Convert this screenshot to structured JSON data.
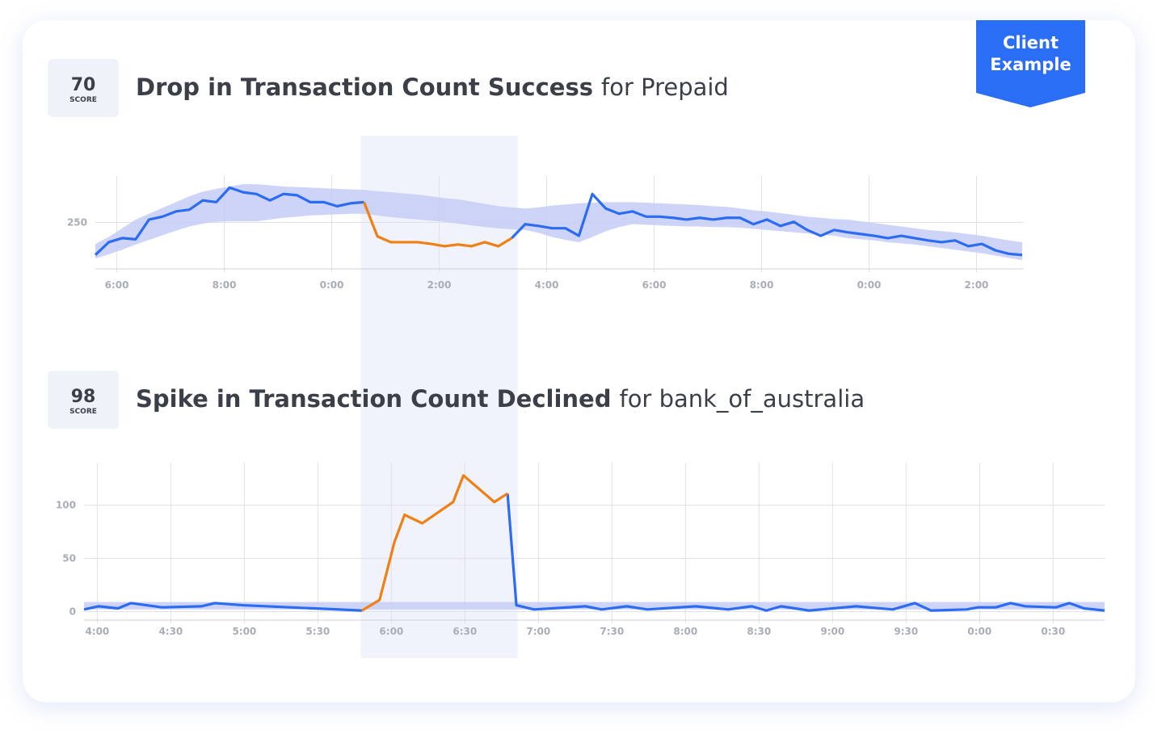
{
  "badge": "Client Example",
  "chart_data": [
    {
      "type": "line",
      "score": 70,
      "score_label": "SCORE",
      "title": "Drop in Transaction Count Success",
      "subtitle": "for Prepaid",
      "x": [
        -0.4,
        -0.15,
        0.1,
        0.35,
        0.6,
        0.85,
        1.1,
        1.35,
        1.6,
        1.85,
        2.1,
        2.35,
        2.6,
        2.85,
        3.1,
        3.35,
        3.6,
        3.85,
        4.1,
        4.35,
        4.6,
        4.85,
        5.1,
        5.35,
        5.6,
        5.85,
        6.1,
        6.35,
        6.6,
        6.85,
        7.1,
        7.35,
        7.6,
        7.85,
        8.1,
        8.35,
        8.6,
        8.85,
        9.1,
        9.35,
        9.6,
        9.85,
        10.1,
        10.35,
        10.6,
        10.85,
        11.1,
        11.35,
        11.6,
        11.85,
        12.1,
        12.35,
        12.6,
        12.85,
        13.1,
        13.35,
        13.6,
        13.85,
        14.1,
        14.35,
        14.6,
        14.85,
        15.1,
        15.35,
        15.6,
        15.85,
        16.1,
        16.35,
        16.6,
        16.85
      ],
      "series": [
        {
          "color": "#2b6cf2",
          "values": [
            194,
            216,
            223,
            221,
            255,
            260,
            269,
            272,
            288,
            285,
            310,
            302,
            299,
            288,
            299,
            297,
            285,
            285,
            278,
            283,
            285,
            null,
            null,
            null,
            null,
            null,
            null,
            null,
            null,
            null,
            null,
            223,
            247,
            244,
            240,
            240,
            227,
            299,
            274,
            265,
            269,
            260,
            260,
            258,
            255,
            258,
            255,
            258,
            258,
            247,
            255,
            244,
            251,
            237,
            227,
            237,
            233,
            230,
            227,
            223,
            227,
            223,
            219,
            216,
            219,
            209,
            213,
            202,
            196,
            194
          ]
        },
        {
          "color": "#f07f14",
          "values": [
            null,
            null,
            null,
            null,
            null,
            null,
            null,
            null,
            null,
            null,
            null,
            null,
            null,
            null,
            null,
            null,
            null,
            null,
            null,
            null,
            285,
            226,
            216,
            216,
            216,
            213,
            209,
            212,
            209,
            216,
            209,
            223,
            null,
            null,
            null,
            null,
            null,
            null,
            null,
            null,
            null,
            null,
            null,
            null,
            null,
            null,
            null,
            null,
            null,
            null,
            null,
            null,
            null,
            null,
            null,
            null,
            null,
            null,
            null,
            null,
            null,
            null,
            null,
            null,
            null,
            null,
            null,
            null,
            null,
            null
          ]
        }
      ],
      "band": {
        "color": "#c6ccf6",
        "upper": [
          213,
          225,
          240,
          255,
          265,
          275,
          285,
          295,
          303,
          308,
          312,
          316,
          316,
          314,
          312,
          311,
          310,
          309,
          308,
          307,
          306,
          304,
          302,
          300,
          298,
          295,
          292,
          290,
          286,
          282,
          278,
          276,
          274,
          276,
          279,
          281,
          283,
          284,
          285,
          285,
          285,
          284,
          283,
          282,
          281,
          280,
          278,
          277,
          274,
          271,
          269,
          266,
          263,
          260,
          258,
          256,
          255,
          252,
          249,
          246,
          243,
          240,
          237,
          235,
          233,
          230,
          227,
          223,
          219,
          216
        ],
        "lower": [
          188,
          195,
          203,
          212,
          220,
          228,
          236,
          243,
          248,
          251,
          252,
          252,
          252,
          255,
          258,
          260,
          262,
          263,
          264,
          265,
          265,
          262,
          259,
          257,
          255,
          253,
          251,
          248,
          245,
          242,
          240,
          238,
          237,
          232,
          225,
          220,
          216,
          225,
          235,
          242,
          247,
          246,
          245,
          244,
          243,
          243,
          242,
          242,
          241,
          239,
          237,
          235,
          233,
          231,
          229,
          227,
          223,
          221,
          219,
          216,
          214,
          212,
          209,
          206,
          203,
          200,
          197,
          193,
          189,
          185
        ]
      },
      "highlight": [
        4.54,
        7.46
      ],
      "xlim": [
        -0.4,
        16.88
      ],
      "ylim": [
        170,
        330
      ],
      "xticks": [
        {
          "value": 0,
          "label": "6:00"
        },
        {
          "value": 2,
          "label": "8:00"
        },
        {
          "value": 4,
          "label": "0:00"
        },
        {
          "value": 6,
          "label": "2:00"
        },
        {
          "value": 8,
          "label": "4:00"
        },
        {
          "value": 10,
          "label": "6:00"
        },
        {
          "value": 12,
          "label": "8:00"
        },
        {
          "value": 14,
          "label": "0:00"
        },
        {
          "value": 16,
          "label": "2:00"
        }
      ],
      "yticks": [
        250
      ],
      "grid": true
    },
    {
      "type": "line",
      "score": 98,
      "score_label": "SCORE",
      "title": "Spike in Transaction Count Declined",
      "subtitle": "for bank_of_australia",
      "x": [
        -0.09,
        0.01,
        0.14,
        0.23,
        0.44,
        0.71,
        0.8,
        0.99,
        1.8,
        1.92,
        2.02,
        2.09,
        2.21,
        2.42,
        2.49,
        2.7,
        2.79,
        2.85,
        2.97,
        3.32,
        3.43,
        3.6,
        3.74,
        4.07,
        4.29,
        4.45,
        4.55,
        4.65,
        4.84,
        5.16,
        5.41,
        5.56,
        5.67,
        5.91,
        5.99,
        6.11,
        6.21,
        6.31,
        6.52,
        6.61,
        6.71,
        6.85
      ],
      "series": [
        {
          "color": "#2b6cf2",
          "values": [
            2,
            5,
            3,
            8,
            4,
            5,
            8,
            6,
            1,
            null,
            null,
            null,
            null,
            null,
            null,
            null,
            111,
            6,
            2,
            5,
            2,
            5,
            2,
            5,
            2,
            5,
            1,
            5,
            1,
            5,
            2,
            8,
            1,
            2,
            4,
            4,
            8,
            5,
            4,
            8,
            3,
            1
          ]
        },
        {
          "color": "#f07f14",
          "values": [
            null,
            null,
            null,
            null,
            null,
            null,
            null,
            null,
            1,
            11,
            65,
            91,
            83,
            103,
            128,
            103,
            111,
            null,
            null,
            null,
            null,
            null,
            null,
            null,
            null,
            null,
            null,
            null,
            null,
            null,
            null,
            null,
            null,
            null,
            null,
            null,
            null,
            null,
            null,
            null,
            null,
            null
          ]
        }
      ],
      "band": {
        "color": "#c6ccf6",
        "lower": 2,
        "upper": 9
      },
      "xlim": [
        -0.09,
        6.85
      ],
      "ylim": [
        -8,
        140
      ],
      "xticks": [
        {
          "value": 0,
          "label": "4:00"
        },
        {
          "value": 0.5,
          "label": "4:30"
        },
        {
          "value": 1,
          "label": "5:00"
        },
        {
          "value": 1.5,
          "label": "5:30"
        },
        {
          "value": 2,
          "label": "6:00"
        },
        {
          "value": 2.5,
          "label": "6:30"
        },
        {
          "value": 3,
          "label": "7:00"
        },
        {
          "value": 3.5,
          "label": "7:30"
        },
        {
          "value": 4,
          "label": "8:00"
        },
        {
          "value": 4.5,
          "label": "8:30"
        },
        {
          "value": 5,
          "label": "9:00"
        },
        {
          "value": 5.5,
          "label": "9:30"
        },
        {
          "value": 6,
          "label": "0:00"
        },
        {
          "value": 6.5,
          "label": "0:30"
        }
      ],
      "yticks": [
        0,
        50,
        100
      ],
      "grid": true
    }
  ]
}
